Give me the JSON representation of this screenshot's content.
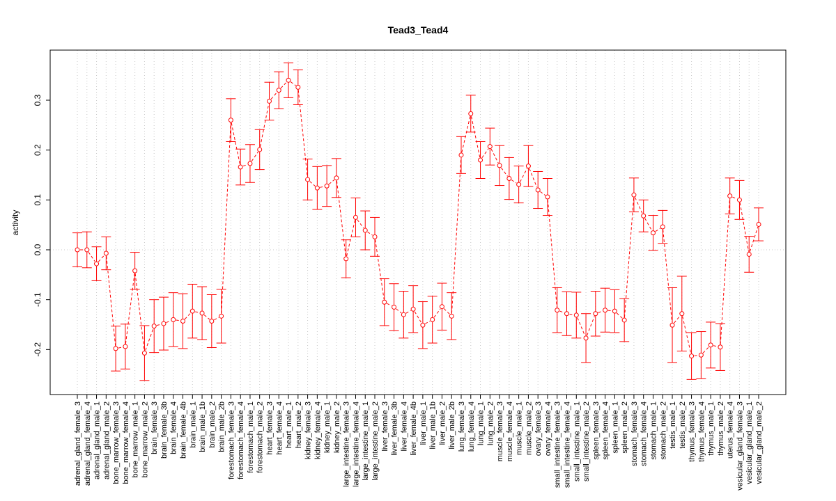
{
  "chart_data": {
    "type": "line",
    "title": "Tead3_Tead4",
    "xlabel": "",
    "ylabel": "activity",
    "ylim": [
      -0.29,
      0.4
    ],
    "yticks": [
      -0.2,
      -0.1,
      0.0,
      0.1,
      0.2,
      0.3
    ],
    "ytick_labels": [
      "-0.2",
      "-0.1",
      "0.0",
      "0.1",
      "0.2",
      "0.3"
    ],
    "grid": "vertical dotted, horizontal dotted at 0",
    "series_color": "#ff0000",
    "categories": [
      "adrenal_gland_female_3",
      "adrenal_gland_female_4",
      "adrenal_gland_male_1",
      "adrenal_gland_male_2",
      "bone_marrow_female_3",
      "bone_marrow_female_4",
      "bone_marrow_male_1",
      "bone_marrow_male_2",
      "brain_female_3",
      "brain_female_3b",
      "brain_female_4",
      "brain_female_4b",
      "brain_male_1",
      "brain_male_1b",
      "brain_male_2",
      "brain_male_2b",
      "forestomach_female_3",
      "forestomach_female_4",
      "forestomach_male_1",
      "forestomach_male_2",
      "heart_female_3",
      "heart_female_4",
      "heart_male_1",
      "heart_male_2",
      "kidney_female_3",
      "kidney_female_4",
      "kidney_male_1",
      "kidney_male_2",
      "large_intestine_female_3",
      "large_intestine_female_4",
      "large_intestine_male_1",
      "large_intestine_male_2",
      "liver_female_3",
      "liver_female_3b",
      "liver_female_4",
      "liver_female_4b",
      "liver_male_1",
      "liver_male_1b",
      "liver_male_2",
      "liver_male_2b",
      "lung_female_3",
      "lung_female_4",
      "lung_male_1",
      "lung_male_2",
      "muscle_female_3",
      "muscle_female_4",
      "muscle_male_1",
      "muscle_male_2",
      "ovary_female_3",
      "ovary_female_4",
      "small_intestine_female_3",
      "small_intestine_female_4",
      "small_intestine_male_1",
      "small_intestine_male_2",
      "spleen_female_3",
      "spleen_female_4",
      "spleen_male_1",
      "spleen_male_2",
      "stomach_female_3",
      "stomach_female_4",
      "stomach_male_1",
      "stomach_male_2",
      "testis_male_1",
      "testis_male_2",
      "thymus_female_3",
      "thymus_female_4",
      "thymus_male_1",
      "thymus_male_2",
      "uterus_female_4",
      "vesicular_gland_female_3",
      "vesicular_gland_male_1",
      "vesicular_gland_male_2"
    ],
    "values": [
      0.0,
      0.0,
      -0.028,
      -0.007,
      -0.198,
      -0.194,
      -0.042,
      -0.207,
      -0.153,
      -0.148,
      -0.14,
      -0.143,
      -0.123,
      -0.127,
      -0.143,
      -0.133,
      0.26,
      0.166,
      0.173,
      0.201,
      0.298,
      0.32,
      0.34,
      0.326,
      0.141,
      0.124,
      0.128,
      0.144,
      -0.018,
      0.065,
      0.039,
      0.026,
      -0.105,
      -0.115,
      -0.13,
      -0.119,
      -0.151,
      -0.14,
      -0.114,
      -0.133,
      0.19,
      0.273,
      0.18,
      0.207,
      0.169,
      0.143,
      0.131,
      0.168,
      0.12,
      0.106,
      -0.121,
      -0.128,
      -0.131,
      -0.177,
      -0.128,
      -0.121,
      -0.123,
      -0.141,
      0.11,
      0.068,
      0.034,
      0.046,
      -0.151,
      -0.128,
      -0.213,
      -0.211,
      -0.191,
      -0.195,
      0.108,
      0.1,
      -0.009,
      0.051
    ],
    "errors": [
      0.034,
      0.036,
      0.034,
      0.033,
      0.045,
      0.045,
      0.037,
      0.055,
      0.053,
      0.053,
      0.054,
      0.055,
      0.054,
      0.053,
      0.053,
      0.054,
      0.043,
      0.036,
      0.038,
      0.04,
      0.038,
      0.037,
      0.035,
      0.035,
      0.041,
      0.043,
      0.041,
      0.039,
      0.038,
      0.039,
      0.039,
      0.039,
      0.047,
      0.047,
      0.047,
      0.047,
      0.047,
      0.047,
      0.047,
      0.047,
      0.037,
      0.037,
      0.037,
      0.037,
      0.04,
      0.042,
      0.037,
      0.041,
      0.037,
      0.037,
      0.045,
      0.044,
      0.046,
      0.049,
      0.045,
      0.044,
      0.043,
      0.043,
      0.034,
      0.032,
      0.035,
      0.033,
      0.075,
      0.075,
      0.047,
      0.047,
      0.046,
      0.047,
      0.036,
      0.039,
      0.036,
      0.033
    ]
  }
}
